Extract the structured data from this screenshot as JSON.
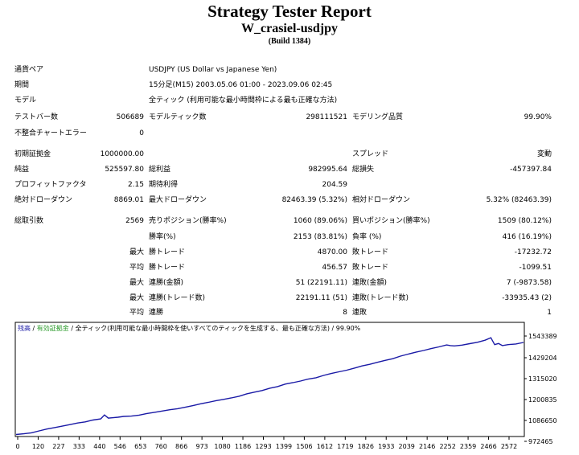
{
  "header": {
    "title": "Strategy Tester Report",
    "subtitle": "W_crasiel-usdjpy",
    "build": "(Build 1384)"
  },
  "settings": {
    "currency_pair_label": "通貨ペア",
    "currency_pair_value": "USDJPY (US Dollar vs Japanese Yen)",
    "period_label": "期間",
    "period_value": "15分足(M15) 2003.05.06 01:00 - 2023.09.06 02:45",
    "model_label": "モデル",
    "model_value": "全ティック (利用可能な最小時間枠による最も正確な方法)"
  },
  "summary": {
    "bars_label": "テストバー数",
    "bars_value": "506689",
    "ticks_label": "モデルティック数",
    "ticks_value": "298111521",
    "quality_label": "モデリング品質",
    "quality_value": "99.90%",
    "mismatch_label": "不整合チャートエラー",
    "mismatch_value": "0",
    "deposit_label": "初期証拠金",
    "deposit_value": "1000000.00",
    "spread_label": "スプレッド",
    "spread_value": "変動",
    "net_label": "純益",
    "net_value": "525597.80",
    "gross_profit_label": "総利益",
    "gross_profit_value": "982995.64",
    "gross_loss_label": "総損失",
    "gross_loss_value": "-457397.84",
    "pf_label": "プロフィットファクタ",
    "pf_value": "2.15",
    "expected_label": "期待利得",
    "expected_value": "204.59",
    "abs_dd_label": "絶対ドローダウン",
    "abs_dd_value": "8869.01",
    "max_dd_label": "最大ドローダウン",
    "max_dd_value": "82463.39 (5.32%)",
    "rel_dd_label": "相対ドローダウン",
    "rel_dd_value": "5.32% (82463.39)",
    "trades_label": "総取引数",
    "trades_value": "2569",
    "short_label": "売りポジション(勝率%)",
    "short_value": "1060 (89.06%)",
    "long_label": "買いポジション(勝率%)",
    "long_value": "1509 (80.12%)",
    "win_rate_label": "勝率(%)",
    "win_rate_value": "2153 (83.81%)",
    "loss_rate_label": "負率 (%)",
    "loss_rate_value": "416 (16.19%)",
    "max_label": "最大",
    "avg_label": "平均",
    "largest_win_label": "勝トレード",
    "largest_win_value": "4870.00",
    "largest_loss_label": "敗トレード",
    "largest_loss_value": "-17232.72",
    "avg_win_label": "勝トレード",
    "avg_win_value": "456.57",
    "avg_loss_label": "敗トレード",
    "avg_loss_value": "-1099.51",
    "cons_wins_amt_label": "連勝(金額)",
    "cons_wins_amt_value": "51 (22191.11)",
    "cons_loss_amt_label": "連敗(金額)",
    "cons_loss_amt_value": "7 (-9873.58)",
    "cons_wins_cnt_label": "連勝(トレード数)",
    "cons_wins_cnt_value": "22191.11 (51)",
    "cons_loss_cnt_label": "連敗(トレード数)",
    "cons_loss_cnt_value": "-33935.43 (2)",
    "avg_cons_wins_label": "連勝",
    "avg_cons_wins_value": "8",
    "avg_cons_loss_label": "連敗",
    "avg_cons_loss_value": "1"
  },
  "chart_data": {
    "type": "line",
    "legend": {
      "balance": "残高",
      "sep1": " / ",
      "lots": "有効証拠金",
      "sep2": " / ",
      "model": "全ティック(利用可能な最小時間枠を使いすべてのティックを生成する、最も正確な方法)",
      "sep3": " / ",
      "quality": "99.90%"
    },
    "colors": {
      "line": "#1a1aa6",
      "legend_blue": "#1a1aa6",
      "legend_green": "#2a9a2a"
    },
    "x_ticks": [
      "0",
      "120",
      "227",
      "333",
      "440",
      "546",
      "653",
      "760",
      "866",
      "973",
      "1080",
      "1186",
      "1293",
      "1399",
      "1506",
      "1612",
      "1719",
      "1826",
      "1933",
      "2039",
      "2146",
      "2252",
      "2359",
      "2466",
      "2572"
    ],
    "y_ticks": [
      "1543389",
      "1429204",
      "1315020",
      "1200835",
      "1086650",
      "972465"
    ],
    "ylim": [
      972465,
      1600000
    ],
    "series": [
      {
        "x": [
          0,
          40,
          80,
          120,
          160,
          200,
          240,
          280,
          320,
          360,
          400,
          440,
          460,
          480,
          500,
          530,
          560,
          600,
          640,
          680,
          720,
          760,
          800,
          840,
          880,
          920,
          960,
          1000,
          1040,
          1080,
          1120,
          1160,
          1200,
          1240,
          1280,
          1320,
          1360,
          1400,
          1440,
          1480,
          1520,
          1560,
          1600,
          1640,
          1680,
          1720,
          1760,
          1800,
          1840,
          1880,
          1920,
          1960,
          2000,
          2040,
          2080,
          2120,
          2160,
          2200,
          2240,
          2260,
          2280,
          2320,
          2360,
          2400,
          2440,
          2470,
          2490,
          2510,
          2530,
          2560,
          2600,
          2640
        ],
        "y": [
          980000,
          984000,
          990000,
          1002000,
          1013000,
          1022000,
          1031000,
          1040000,
          1050000,
          1057000,
          1068000,
          1075000,
          1099000,
          1080000,
          1082000,
          1085000,
          1090000,
          1092000,
          1098000,
          1108000,
          1115000,
          1123000,
          1131000,
          1137000,
          1146000,
          1156000,
          1167000,
          1176000,
          1186000,
          1194000,
          1203000,
          1213000,
          1228000,
          1238000,
          1248000,
          1262000,
          1272000,
          1287000,
          1296000,
          1306000,
          1318000,
          1326000,
          1340000,
          1352000,
          1362000,
          1372000,
          1385000,
          1398000,
          1408000,
          1420000,
          1432000,
          1442000,
          1458000,
          1470000,
          1482000,
          1492000,
          1504000,
          1514000,
          1526000,
          1522000,
          1520000,
          1525000,
          1534000,
          1542000,
          1555000,
          1570000,
          1528000,
          1535000,
          1522000,
          1528000,
          1532000,
          1541000
        ]
      }
    ]
  }
}
